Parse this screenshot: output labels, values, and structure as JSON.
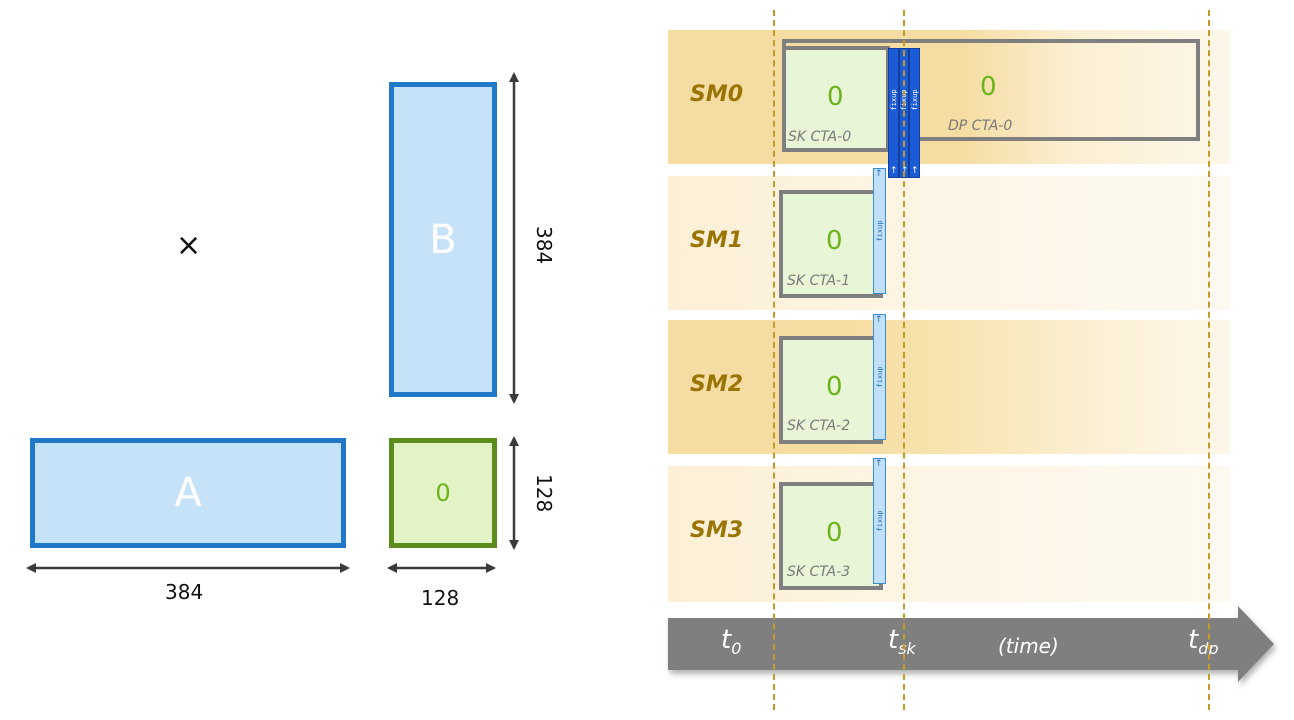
{
  "matrices": {
    "a_label": "A",
    "b_label": "B",
    "c_tile": "0",
    "times": "×",
    "a_width": "384",
    "b_height": "384",
    "c_height": "128",
    "c_width": "128"
  },
  "rows": [
    {
      "label": "SM0",
      "sk_tile": "0",
      "sk_label": "SK CTA-0",
      "dp_tile": "0",
      "dp_label": "DP CTA-0"
    },
    {
      "label": "SM1",
      "sk_tile": "0",
      "sk_label": "SK CTA-1"
    },
    {
      "label": "SM2",
      "sk_tile": "0",
      "sk_label": "SK CTA-2"
    },
    {
      "label": "SM3",
      "sk_tile": "0",
      "sk_label": "SK CTA-3"
    }
  ],
  "fixup_label": "fixup",
  "fixup_arrow": "↑",
  "timeline": {
    "t0": "t",
    "t0_sub": "0",
    "tsk": "t",
    "tsk_sub": "sk",
    "time": "(time)",
    "tdp": "t",
    "tdp_sub": "dp"
  },
  "colors": {
    "matrix_fill": "#c6e2f8",
    "matrix_border": "#1f78c8",
    "tile_fill": "#e2f3c6",
    "tile_border": "#5b8c1c",
    "fixup_dark": "#1c5bd6",
    "sm_label": "#9a7506",
    "timeline_arrow": "#7f7f7f"
  }
}
